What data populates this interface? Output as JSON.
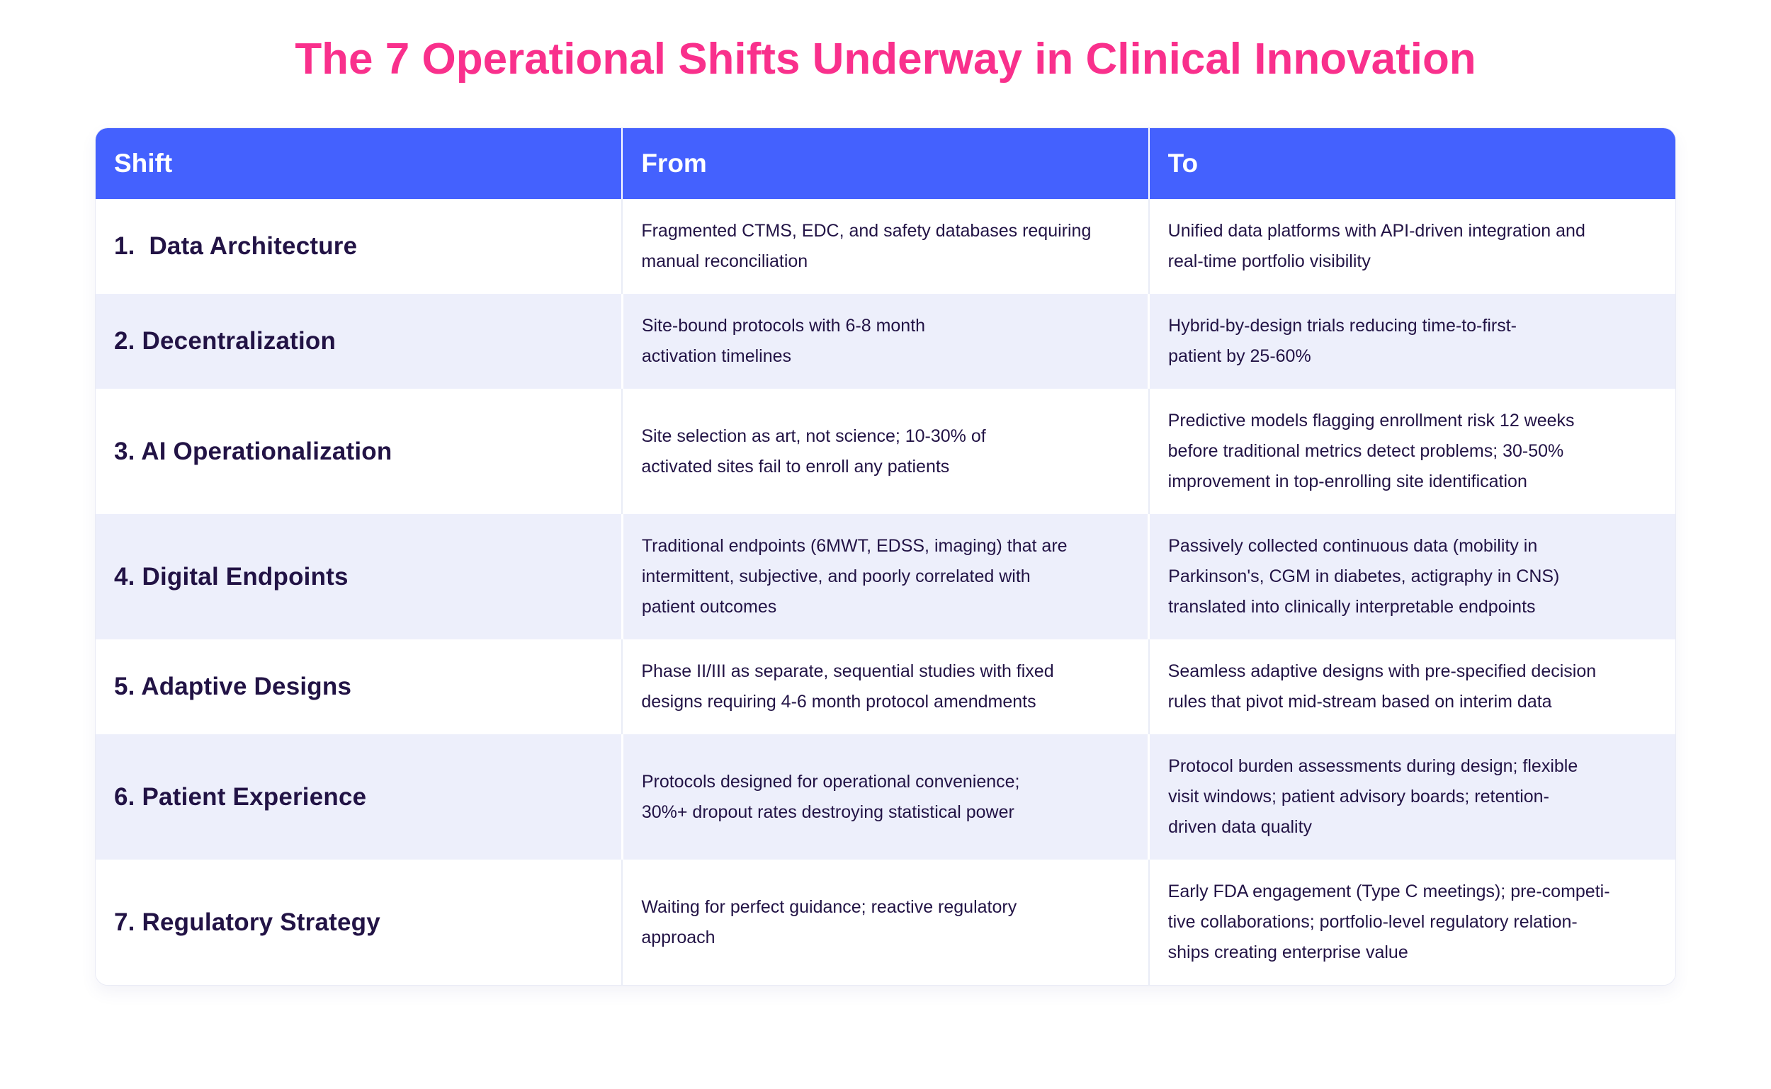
{
  "colors": {
    "title_pink": "#F9308C",
    "header_blue": "#4461FE",
    "body_text": "#221345",
    "stripe_lavender": "#EDEFFB",
    "separator": "#E9ECF6"
  },
  "chart_data": {
    "type": "table",
    "title": "The 7 Operational Shifts Underway in Clinical Innovation",
    "columns": [
      "Shift",
      "From",
      "To"
    ],
    "rows": [
      {
        "shift": "1.  Data Architecture",
        "from": "Fragmented CTMS, EDC, and safety databases requiring\nmanual reconciliation",
        "to": "Unified data platforms with API-driven integration and\nreal-time portfolio visibility"
      },
      {
        "shift": "2. Decentralization",
        "from": "Site-bound protocols with 6-8 month\nactivation timelines",
        "to": "Hybrid-by-design trials reducing time-to-first-\npatient by 25-60%"
      },
      {
        "shift": "3. AI Operationalization",
        "from": "Site selection as art, not science; 10-30% of\nactivated sites fail to enroll any patients",
        "to": "Predictive models flagging enrollment risk 12 weeks\nbefore traditional metrics detect problems; 30-50%\nimprovement in top-enrolling site identification"
      },
      {
        "shift": "4. Digital Endpoints",
        "from": "Traditional endpoints (6MWT, EDSS, imaging) that are\nintermittent, subjective, and poorly correlated with\npatient outcomes",
        "to": "Passively collected continuous data (mobility in\nParkinson's, CGM in diabetes, actigraphy in CNS)\ntranslated into clinically interpretable endpoints"
      },
      {
        "shift": "5. Adaptive Designs",
        "from": "Phase II/III as separate, sequential studies with fixed\ndesigns requiring 4-6 month protocol amendments",
        "to": "Seamless adaptive designs with pre-specified decision\nrules that pivot mid-stream based on interim data"
      },
      {
        "shift": "6. Patient Experience",
        "from": "Protocols designed for operational convenience;\n30%+ dropout rates destroying statistical power",
        "to": "Protocol burden assessments during design; flexible\nvisit windows; patient advisory boards; retention-\ndriven data quality"
      },
      {
        "shift": "7. Regulatory Strategy",
        "from": "Waiting for perfect guidance; reactive regulatory\napproach",
        "to": "Early FDA engagement (Type C meetings); pre-competi-\ntive collaborations; portfolio-level regulatory relation-\nships creating enterprise value"
      }
    ]
  }
}
